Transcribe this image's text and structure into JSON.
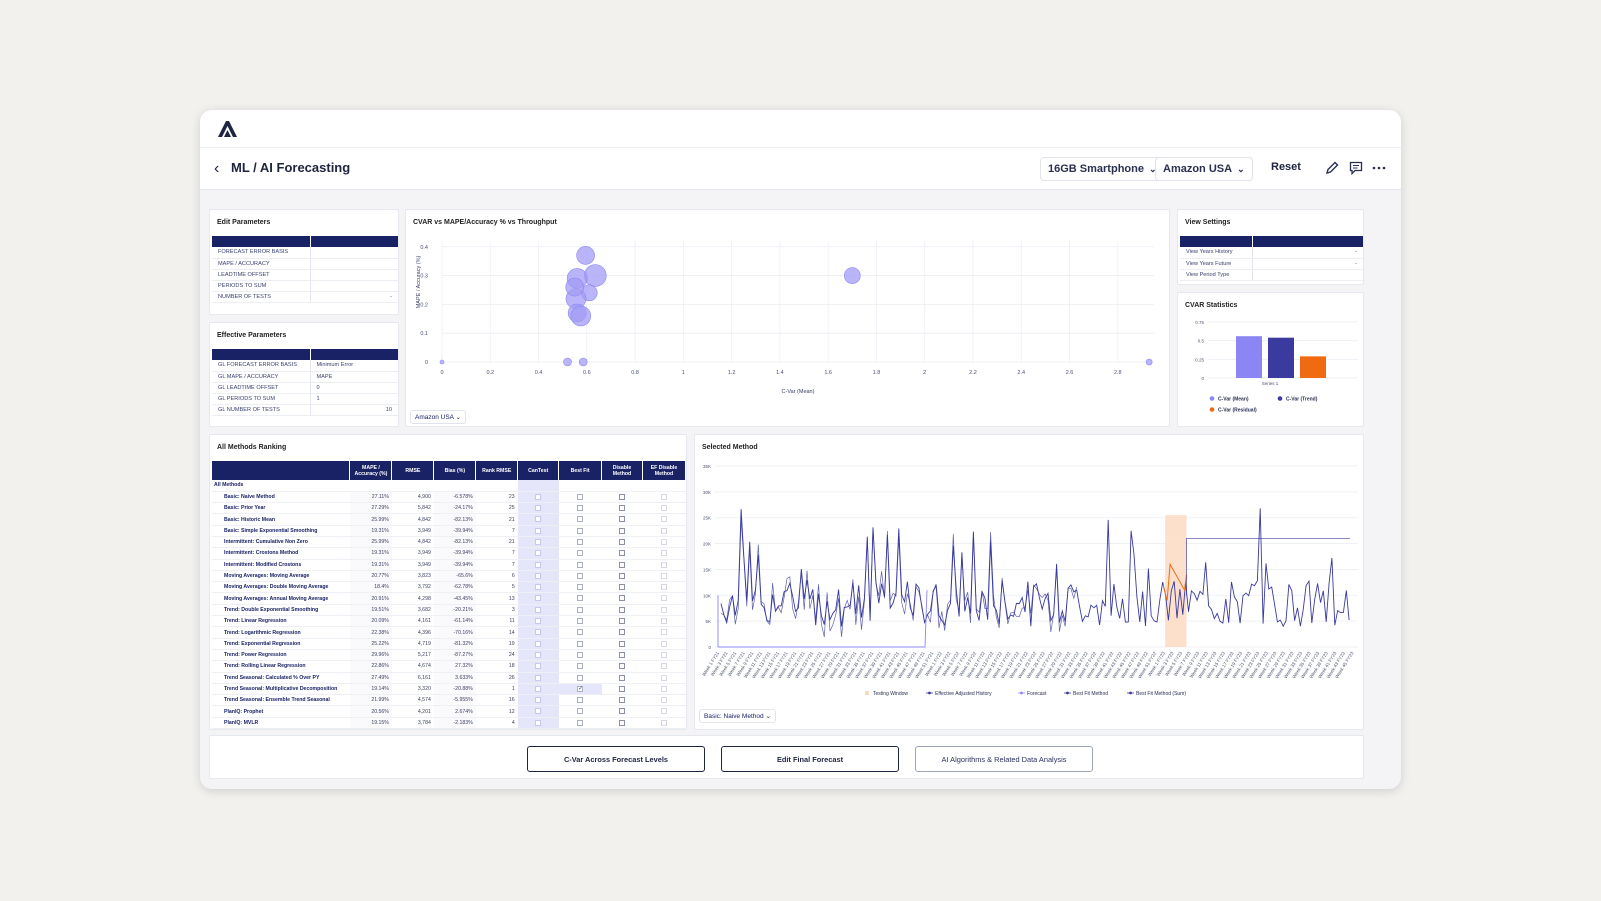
{
  "header": {
    "title": "ML / AI Forecasting",
    "product_select": "16GB Smartphone",
    "region_select": "Amazon USA",
    "reset_label": "Reset"
  },
  "icons": {
    "logo": "brand-a-logo",
    "back": "chevron-left-icon",
    "edit": "pencil-icon",
    "comment": "comment-icon",
    "more": "more-horizontal-icon"
  },
  "edit_parameters": {
    "title": "Edit Parameters",
    "rows": [
      {
        "label": "FORECAST ERROR BASIS",
        "value": ""
      },
      {
        "label": "MAPE / ACCURACY",
        "value": ""
      },
      {
        "label": "LEADTIME OFFSET",
        "value": ""
      },
      {
        "label": "PERIODS TO SUM",
        "value": ""
      },
      {
        "label": "NUMBER OF TESTS",
        "value": "-"
      }
    ]
  },
  "effective_parameters": {
    "title": "Effective Parameters",
    "rows": [
      {
        "label": "GL FORECAST ERROR BASIS",
        "value": "Minimum Error"
      },
      {
        "label": "GL MAPE / ACCURACY",
        "value": "MAPE"
      },
      {
        "label": "GL LEADTIME OFFSET",
        "value": "0"
      },
      {
        "label": "GL PERIODS TO SUM",
        "value": "1"
      },
      {
        "label": "GL NUMBER OF TESTS",
        "value": "10"
      }
    ]
  },
  "view_settings": {
    "title": "View Settings",
    "rows": [
      {
        "label": "View Years History",
        "value": "-"
      },
      {
        "label": "View Years Future",
        "value": "-"
      },
      {
        "label": "View Period Type",
        "value": ""
      }
    ]
  },
  "scatter": {
    "title": "CVAR vs MAPE/Accuracy % vs Throughput",
    "region_select": "Amazon USA",
    "chart_data": {
      "type": "scatter",
      "xlabel": "C-Var (Mean)",
      "ylabel": "MAPE / Accuracy (%)",
      "xlim": [
        0,
        2.95
      ],
      "ylim": [
        0,
        0.42
      ],
      "x_ticks": [
        "0",
        "0.2",
        "0.4",
        "0.6",
        "0.8",
        "1",
        "1.2",
        "1.4",
        "1.6",
        "1.8",
        "2",
        "2.2",
        "2.4",
        "2.6",
        "2.8"
      ],
      "y_ticks": [
        "0",
        "0.1",
        "0.2",
        "0.3",
        "0.4"
      ],
      "points": [
        {
          "x": 0.595,
          "y": 0.37,
          "size": 9
        },
        {
          "x": 0.635,
          "y": 0.3,
          "size": 11
        },
        {
          "x": 0.56,
          "y": 0.29,
          "size": 10
        },
        {
          "x": 0.61,
          "y": 0.24,
          "size": 8
        },
        {
          "x": 0.555,
          "y": 0.22,
          "size": 10
        },
        {
          "x": 0.56,
          "y": 0.17,
          "size": 9
        },
        {
          "x": 0.575,
          "y": 0.16,
          "size": 10
        },
        {
          "x": 0.55,
          "y": 0.26,
          "size": 9
        },
        {
          "x": 1.7,
          "y": 0.3,
          "size": 8
        },
        {
          "x": 0.0,
          "y": 0.0,
          "size": 2
        },
        {
          "x": 0.52,
          "y": 0.0,
          "size": 4
        },
        {
          "x": 0.585,
          "y": 0.0,
          "size": 4
        },
        {
          "x": 2.93,
          "y": 0.0,
          "size": 3
        }
      ]
    }
  },
  "cvar_stats": {
    "title": "CVAR Statistics",
    "chart_data": {
      "type": "bar",
      "categories": [
        "Series 1"
      ],
      "ylim": [
        0,
        0.75
      ],
      "y_ticks": [
        "0",
        "0.25",
        "0.5",
        "0.75"
      ],
      "series": [
        {
          "name": "C-Var (Mean)",
          "values": [
            0.56
          ],
          "color": "#8c86f5"
        },
        {
          "name": "C-Var (Trend)",
          "values": [
            0.54
          ],
          "color": "#3b3a9e"
        },
        {
          "name": "C-Var (Residual)",
          "values": [
            0.29
          ],
          "color": "#f06a12"
        }
      ]
    }
  },
  "ranking": {
    "title": "All Methods Ranking",
    "columns": [
      "MAPE / Accuracy (%)",
      "RMSE",
      "Bias (%)",
      "Rank RMSE",
      "CanTest",
      "Best Fit",
      "Disable Method",
      "EF Disable Method"
    ],
    "group_label": "All Methods",
    "rows": [
      {
        "method": "Basic: Naive Method",
        "mape": "27.11%",
        "rmse": "4,900",
        "bias": "-6.578%",
        "rank": "23",
        "best": false
      },
      {
        "method": "Basic: Prior Year",
        "mape": "27.29%",
        "rmse": "5,842",
        "bias": "-24.17%",
        "rank": "25",
        "best": false
      },
      {
        "method": "Basic: Historic Mean",
        "mape": "25.99%",
        "rmse": "4,842",
        "bias": "-82.13%",
        "rank": "21",
        "best": false
      },
      {
        "method": "Basic: Simple Exponential Smoothing",
        "mape": "19.31%",
        "rmse": "3,949",
        "bias": "-39.94%",
        "rank": "7",
        "best": false
      },
      {
        "method": "Intermittent: Cumulative Non Zero",
        "mape": "25.99%",
        "rmse": "4,842",
        "bias": "-82.13%",
        "rank": "21",
        "best": false
      },
      {
        "method": "Intermittent: Crostons Method",
        "mape": "19.31%",
        "rmse": "3,949",
        "bias": "-39.94%",
        "rank": "7",
        "best": false
      },
      {
        "method": "Intermittent: Modified Crostons",
        "mape": "19.31%",
        "rmse": "3,949",
        "bias": "-39.94%",
        "rank": "7",
        "best": false
      },
      {
        "method": "Moving Averages: Moving Average",
        "mape": "20.77%",
        "rmse": "3,823",
        "bias": "-65.6%",
        "rank": "6",
        "best": false
      },
      {
        "method": "Moving Averages: Double Moving Average",
        "mape": "18.4%",
        "rmse": "3,792",
        "bias": "-62.78%",
        "rank": "5",
        "best": false
      },
      {
        "method": "Moving Averages: Annual Moving Average",
        "mape": "20.91%",
        "rmse": "4,298",
        "bias": "-43.45%",
        "rank": "13",
        "best": false
      },
      {
        "method": "Trend: Double Exponential Smoothing",
        "mape": "19.51%",
        "rmse": "3,682",
        "bias": "-20.21%",
        "rank": "3",
        "best": false
      },
      {
        "method": "Trend: Linear Regression",
        "mape": "20.09%",
        "rmse": "4,161",
        "bias": "-61.14%",
        "rank": "11",
        "best": false
      },
      {
        "method": "Trend: Logarithmic Regression",
        "mape": "22.38%",
        "rmse": "4,396",
        "bias": "-70.16%",
        "rank": "14",
        "best": false
      },
      {
        "method": "Trend: Exponential Regression",
        "mape": "25.22%",
        "rmse": "4,719",
        "bias": "-81.32%",
        "rank": "19",
        "best": false
      },
      {
        "method": "Trend: Power Regression",
        "mape": "29.96%",
        "rmse": "5,217",
        "bias": "-87.27%",
        "rank": "24",
        "best": false
      },
      {
        "method": "Trend: Rolling Linear Regression",
        "mape": "22.86%",
        "rmse": "4,674",
        "bias": "27.32%",
        "rank": "18",
        "best": false
      },
      {
        "method": "Trend Seasonal: Calculated % Over PY",
        "mape": "27.49%",
        "rmse": "6,161",
        "bias": "3.633%",
        "rank": "26",
        "best": false
      },
      {
        "method": "Trend Seasonal: Multiplicative Decomposition",
        "mape": "19.14%",
        "rmse": "3,320",
        "bias": "-20.88%",
        "rank": "1",
        "best": true
      },
      {
        "method": "Trend Seasonal: Ensemble Trend Seasonal",
        "mape": "21.99%",
        "rmse": "4,574",
        "bias": "-5.955%",
        "rank": "16",
        "best": false
      },
      {
        "method": "PlanIQ: Prophet",
        "mape": "20.56%",
        "rmse": "4,201",
        "bias": "2.674%",
        "rank": "12",
        "best": false
      },
      {
        "method": "PlanIQ: MVLR",
        "mape": "19.15%",
        "rmse": "3,784",
        "bias": "-2.183%",
        "rank": "4",
        "best": false
      }
    ]
  },
  "selected_method": {
    "title": "Selected Method",
    "method_select": "Basic: Naive Method",
    "chart_data": {
      "type": "line",
      "ylim": [
        0,
        35000
      ],
      "y_ticks": [
        "0",
        "5K",
        "10K",
        "15K",
        "20K",
        "25K",
        "30K",
        "35K"
      ],
      "x_labels": [
        "Week 1 FY21",
        "Week 3 FY21",
        "Week 5 FY21",
        "Week 7 FY21",
        "Week 9 FY21",
        "Week 11 FY21",
        "Week 13 FY21",
        "Week 15 FY21",
        "Week 17 FY21",
        "Week 19 FY21",
        "Week 21 FY21",
        "Week 23 FY21",
        "Week 25 FY21",
        "Week 27 FY21",
        "Week 29 FY21",
        "Week 31 FY21",
        "Week 33 FY21",
        "Week 35 FY21",
        "Week 37 FY21",
        "Week 39 FY21",
        "Week 41 FY21",
        "Week 43 FY21",
        "Week 45 FY21",
        "Week 47 FY21",
        "Week 49 FY21",
        "Week 51 FY21",
        "Week 1 FY22",
        "Week 3 FY22",
        "Week 5 FY22",
        "Week 7 FY22",
        "Week 9 FY22",
        "Week 11 FY22",
        "Week 13 FY22",
        "Week 15 FY22",
        "Week 17 FY22",
        "Week 19 FY22",
        "Week 21 FY22",
        "Week 23 FY22",
        "Week 25 FY22",
        "Week 27 FY22",
        "Week 29 FY22",
        "Week 31 FY22",
        "Week 33 FY22",
        "Week 35 FY22",
        "Week 37 FY22",
        "Week 39 FY22",
        "Week 41 FY22",
        "Week 43 FY22",
        "Week 45 FY22",
        "Week 47 FY22",
        "Week 49 FY22",
        "Week 51 FY22",
        "Week 1 FY23",
        "Week 3 FY23",
        "Week 5 FY23",
        "Week 7 FY23",
        "Week 9 FY23",
        "Week 11 FY23",
        "Week 13 FY23",
        "Week 15 FY23",
        "Week 17 FY23",
        "Week 19 FY23",
        "Week 21 FY23",
        "Week 23 FY23",
        "Week 25 FY23",
        "Week 27 FY23",
        "Week 29 FY23",
        "Week 31 FY23",
        "Week 33 FY23",
        "Week 35 FY23",
        "Week 37 FY23",
        "Week 39 FY23",
        "Week 41 FY23",
        "Week 43 FY23",
        "Week 45 FY23"
      ],
      "series": [
        {
          "name": "Testing Window",
          "color": "#fcd8bf"
        },
        {
          "name": "Effective Adjusted History",
          "color": "#3a3a9e"
        },
        {
          "name": "Forecast",
          "color": "#8c86f5"
        },
        {
          "name": "Best Fit Method",
          "color": "#3a3a9e"
        },
        {
          "name": "Best Fit Method (Sum)",
          "color": "#3a3a9e"
        }
      ]
    }
  },
  "footer": {
    "buttons": [
      "C-Var Across Forecast Levels",
      "Edit Final Forecast",
      "AI Algorithms & Related Data Analysis"
    ]
  }
}
